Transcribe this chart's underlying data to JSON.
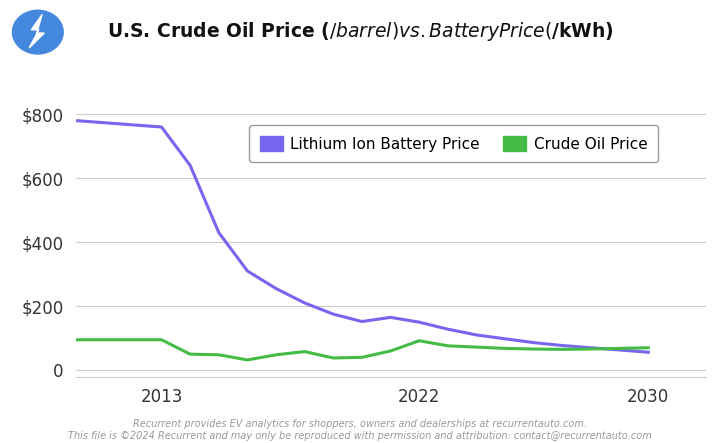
{
  "title": "U.S. Crude Oil Price ($/barrel)vs. Battery Price ($/kWh)",
  "background_color": "#ffffff",
  "plot_bg_color": "#ffffff",
  "battery_years": [
    2010,
    2013,
    2014,
    2015,
    2016,
    2017,
    2018,
    2019,
    2020,
    2021,
    2022,
    2023,
    2024,
    2025,
    2026,
    2027,
    2028,
    2029,
    2030
  ],
  "battery_prices": [
    780,
    760,
    640,
    430,
    310,
    255,
    210,
    175,
    152,
    165,
    150,
    128,
    110,
    98,
    86,
    77,
    70,
    63,
    56
  ],
  "oil_years": [
    2010,
    2013,
    2014,
    2015,
    2016,
    2017,
    2018,
    2019,
    2020,
    2021,
    2022,
    2023,
    2024,
    2025,
    2026,
    2027,
    2028,
    2029,
    2030
  ],
  "oil_prices": [
    95,
    95,
    50,
    48,
    32,
    48,
    58,
    38,
    40,
    60,
    92,
    76,
    72,
    68,
    66,
    65,
    66,
    68,
    70
  ],
  "battery_color": "#7766ee",
  "oil_color": "#44bb44",
  "line_width": 2.2,
  "ylim": [
    -20,
    880
  ],
  "yticks": [
    0,
    200,
    400,
    600,
    800
  ],
  "xtick_labels": [
    "2013",
    "2022",
    "2030"
  ],
  "xtick_positions": [
    2013,
    2022,
    2030
  ],
  "legend_battery": "Lithium Ion Battery Price",
  "legend_oil": "Crude Oil Price",
  "footer_line1": "Recurrent provides EV analytics for shoppers, owners and dealerships at recurrentauto.com.",
  "footer_line2": "This file is ©2024 Recurrent and may only be reproduced with permission and attribution: contact@recurrentauto.com",
  "title_fontsize": 13.5,
  "tick_fontsize": 12,
  "legend_fontsize": 11,
  "footer_fontsize": 7,
  "icon_color": "#4488dd"
}
